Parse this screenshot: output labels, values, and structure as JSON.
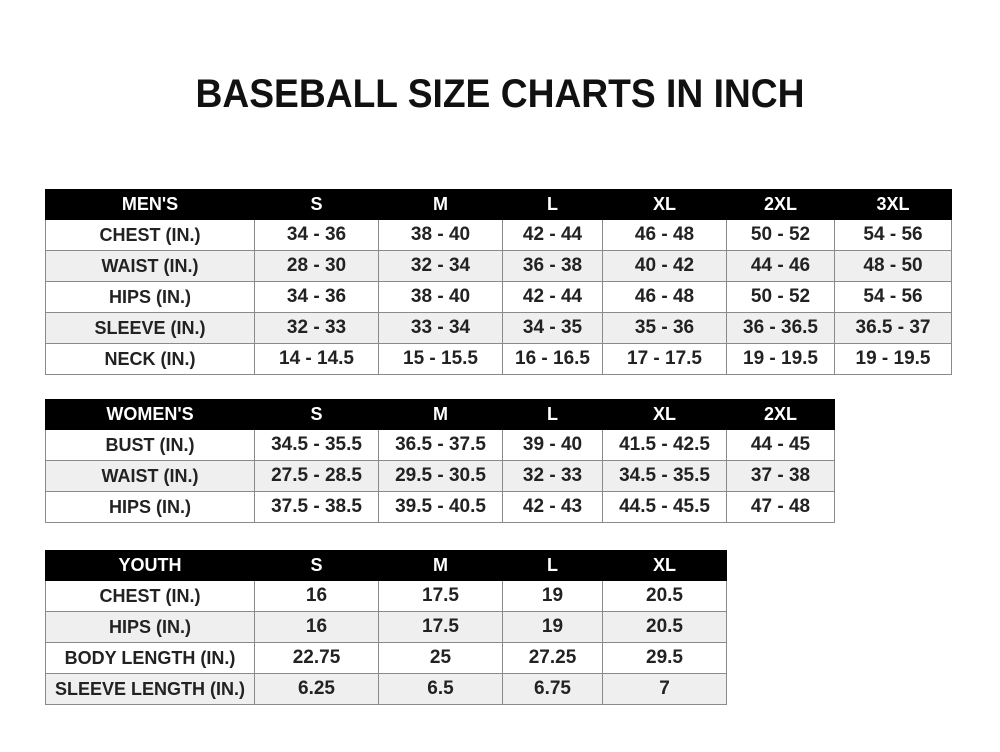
{
  "title": "BASEBALL SIZE CHARTS IN INCH",
  "tables": [
    {
      "name": "mens",
      "headers": [
        "MEN'S",
        "S",
        "M",
        "L",
        "XL",
        "2XL",
        "3XL"
      ],
      "rows": [
        [
          "CHEST (IN.)",
          "34 - 36",
          "38 - 40",
          "42 - 44",
          "46 - 48",
          "50 - 52",
          "54 - 56"
        ],
        [
          "WAIST (IN.)",
          "28 - 30",
          "32 - 34",
          "36 - 38",
          "40 - 42",
          "44 - 46",
          "48 - 50"
        ],
        [
          "HIPS (IN.)",
          "34 - 36",
          "38 - 40",
          "42 - 44",
          "46 - 48",
          "50 - 52",
          "54 - 56"
        ],
        [
          "SLEEVE (IN.)",
          "32 - 33",
          "33 - 34",
          "34 - 35",
          "35 - 36",
          "36 - 36.5",
          "36.5 - 37"
        ],
        [
          "NECK (IN.)",
          "14 - 14.5",
          "15 - 15.5",
          "16 - 16.5",
          "17 - 17.5",
          "19 - 19.5",
          "19 - 19.5"
        ]
      ]
    },
    {
      "name": "womens",
      "headers": [
        "WOMEN'S",
        "S",
        "M",
        "L",
        "XL",
        "2XL"
      ],
      "rows": [
        [
          "BUST (IN.)",
          "34.5 - 35.5",
          "36.5 - 37.5",
          "39 - 40",
          "41.5 - 42.5",
          "44 - 45"
        ],
        [
          "WAIST (IN.)",
          "27.5 - 28.5",
          "29.5 - 30.5",
          "32 - 33",
          "34.5 - 35.5",
          "37 - 38"
        ],
        [
          "HIPS (IN.)",
          "37.5 - 38.5",
          "39.5 - 40.5",
          "42 - 43",
          "44.5 - 45.5",
          "47 - 48"
        ]
      ]
    },
    {
      "name": "youth",
      "headers": [
        "YOUTH",
        "S",
        "M",
        "L",
        "XL"
      ],
      "rows": [
        [
          "CHEST (IN.)",
          "16",
          "17.5",
          "19",
          "20.5"
        ],
        [
          "HIPS (IN.)",
          "16",
          "17.5",
          "19",
          "20.5"
        ],
        [
          "BODY LENGTH (IN.)",
          "22.75",
          "25",
          "27.25",
          "29.5"
        ],
        [
          "SLEEVE LENGTH (IN.)",
          "6.25",
          "6.5",
          "6.75",
          "7"
        ]
      ]
    }
  ]
}
